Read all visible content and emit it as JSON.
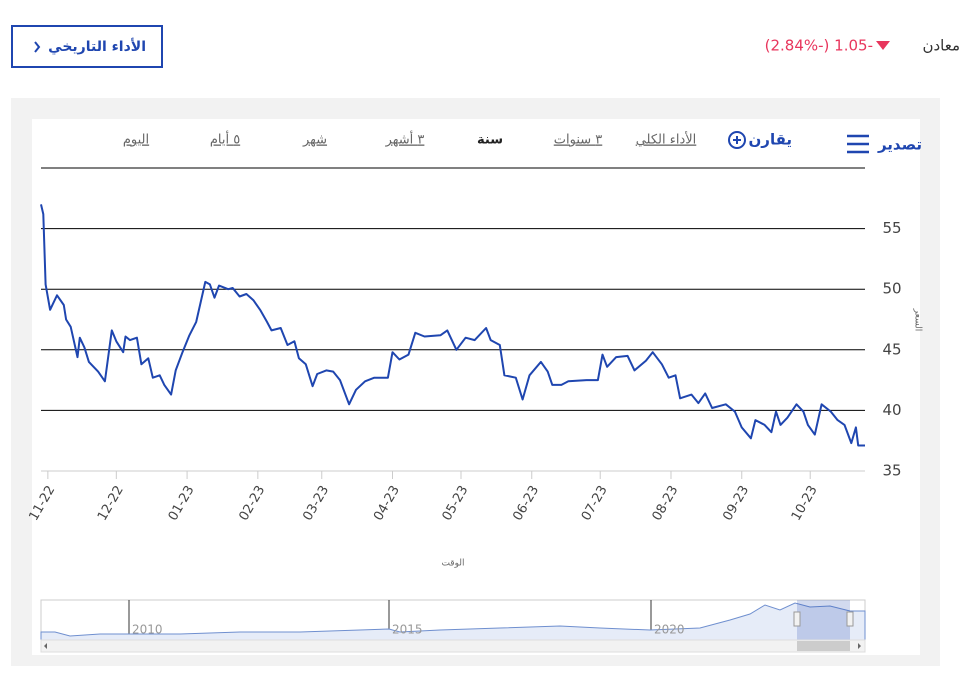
{
  "header": {
    "company": "معادن",
    "change": "(2.84%-) 1.05-",
    "button": "الأداء التاريخي"
  },
  "toolbar": {
    "export": "تصدير",
    "compare": "يقارن",
    "ranges": [
      "الأداء الكلي",
      "٣ سنوات",
      "سنة",
      "٣ أشهر",
      "شهر",
      "٥ أيام",
      "اليوم"
    ]
  },
  "navigator": {
    "labels": [
      "2010",
      "2015",
      "2020"
    ]
  },
  "chart_data": {
    "type": "line",
    "ylabel": "السعر",
    "xlabel": "الوقت",
    "color": "#1f46b0",
    "x": [
      0,
      1,
      2,
      4,
      7,
      10,
      11,
      13,
      16,
      17,
      19,
      21,
      25,
      28,
      31,
      33,
      36,
      37,
      39,
      42,
      44,
      47,
      49,
      52,
      54,
      57,
      59,
      62,
      65,
      68,
      72,
      74,
      76,
      78,
      82,
      84,
      87,
      90,
      93,
      96,
      99,
      101,
      105,
      108,
      111,
      113,
      116,
      119,
      121,
      125,
      128,
      131,
      135,
      138,
      142,
      146,
      152,
      154,
      157,
      161,
      164,
      168,
      175,
      178,
      182,
      186,
      190,
      195,
      197,
      201,
      203,
      208,
      211,
      214,
      219,
      222,
      224,
      228,
      231,
      239,
      244,
      246,
      248,
      252,
      257,
      260,
      265,
      268,
      272,
      275,
      278,
      280,
      285,
      288,
      291,
      294,
      300,
      304,
      307,
      311,
      313,
      317,
      320,
      322,
      324,
      327,
      331,
      334,
      336,
      339,
      342,
      346,
      349,
      352,
      355,
      357,
      358,
      361
    ],
    "values": [
      57.0,
      56.2,
      50.4,
      48.3,
      49.5,
      48.7,
      47.5,
      46.9,
      44.4,
      46.0,
      45.2,
      44.0,
      43.2,
      42.4,
      46.6,
      45.7,
      44.8,
      46.1,
      45.8,
      46.0,
      43.8,
      44.3,
      42.7,
      42.9,
      42.1,
      41.3,
      43.3,
      44.8,
      46.2,
      47.3,
      50.6,
      50.4,
      49.3,
      50.3,
      50.0,
      50.1,
      49.4,
      49.6,
      49.1,
      48.3,
      47.3,
      46.6,
      46.8,
      45.4,
      45.7,
      44.3,
      43.8,
      42.0,
      43.0,
      43.3,
      43.2,
      42.5,
      40.5,
      41.7,
      42.4,
      42.7,
      42.7,
      44.8,
      44.2,
      44.6,
      46.4,
      46.1,
      46.2,
      46.6,
      45.0,
      46.0,
      45.8,
      46.8,
      45.8,
      45.4,
      42.9,
      42.7,
      40.9,
      42.9,
      44.0,
      43.2,
      42.1,
      42.1,
      42.4,
      42.5,
      42.5,
      44.6,
      43.6,
      44.4,
      44.5,
      43.3,
      44.1,
      44.8,
      43.8,
      42.7,
      42.9,
      41.0,
      41.3,
      40.6,
      41.4,
      40.2,
      40.5,
      39.9,
      38.6,
      37.7,
      39.2,
      38.8,
      38.2,
      39.9,
      38.8,
      39.4,
      40.5,
      39.9,
      38.8,
      38.0,
      40.5,
      39.9,
      39.2,
      38.8,
      37.3,
      38.6,
      37.1,
      37.1
    ],
    "xlim": [
      0,
      361
    ],
    "xticks": [
      {
        "value": 3,
        "label": "11-22"
      },
      {
        "value": 33,
        "label": "12-22"
      },
      {
        "value": 64,
        "label": "01-23"
      },
      {
        "value": 95,
        "label": "02-23"
      },
      {
        "value": 123,
        "label": "03-23"
      },
      {
        "value": 154,
        "label": "04-23"
      },
      {
        "value": 184,
        "label": "05-23"
      },
      {
        "value": 215,
        "label": "06-23"
      },
      {
        "value": 245,
        "label": "07-23"
      },
      {
        "value": 276,
        "label": "08-23"
      },
      {
        "value": 307,
        "label": "09-23"
      },
      {
        "value": 337,
        "label": "10-23"
      }
    ],
    "ylim": [
      35,
      60
    ],
    "yticks": [
      35,
      40,
      45,
      50,
      55
    ],
    "grid": true
  }
}
